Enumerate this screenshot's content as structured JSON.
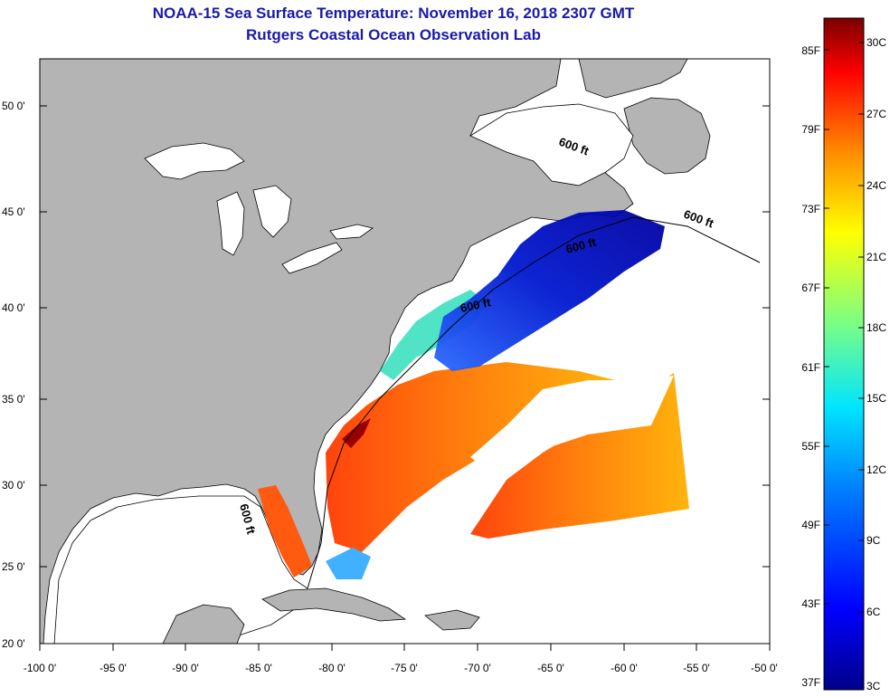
{
  "title": "NOAA-15 Sea Surface Temperature:  November 16, 2018 2307 GMT",
  "subtitle": "Rutgers Coastal Ocean Observation Lab",
  "map": {
    "lat_labels": [
      "50 0'",
      "45 0'",
      "40 0'",
      "35 0'",
      "30 0'",
      "25 0'",
      "20 0'"
    ],
    "lon_labels": [
      "-100 0'",
      "-95 0'",
      "-90 0'",
      "-85 0'",
      "-80 0'",
      "-75 0'",
      "-70 0'",
      "-65 0'",
      "-60 0'",
      "-55 0'",
      "-50 0'"
    ],
    "contour_label": "600 ft",
    "land_color": "#b4b4b4",
    "no_data_color": "#ffffff"
  },
  "colorbar": {
    "fahrenheit_labels": [
      "85F",
      "79F",
      "73F",
      "67F",
      "61F",
      "55F",
      "49F",
      "43F",
      "37F"
    ],
    "celsius_labels": [
      "30C",
      "27C",
      "24C",
      "21C",
      "18C",
      "15C",
      "12C",
      "9C",
      "6C",
      "3C"
    ],
    "colors": [
      "#7a0000",
      "#ff0000",
      "#ff8c00",
      "#ffff00",
      "#7fff7f",
      "#00e5ff",
      "#0080ff",
      "#0000ff",
      "#00008a"
    ]
  }
}
